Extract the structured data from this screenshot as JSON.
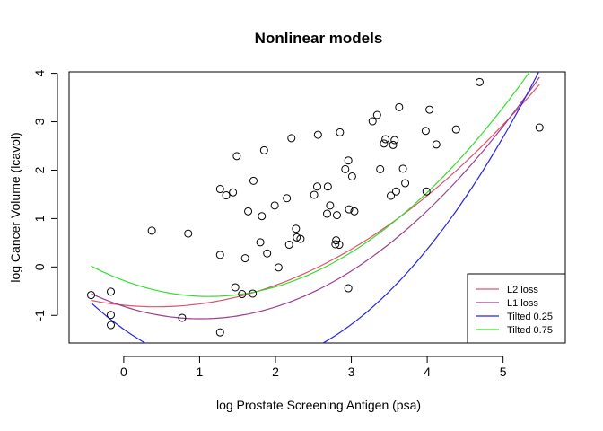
{
  "chart_data": {
    "type": "scatter",
    "title": "Nonlinear models",
    "xlabel": "log Prostate Screening Antigen (psa)",
    "ylabel": "log Cancer Volume (lcavol)",
    "xlim": [
      -0.72,
      5.82
    ],
    "ylim": [
      -1.57,
      4.03
    ],
    "xticks": [
      0,
      1,
      2,
      3,
      4,
      5
    ],
    "yticks": [
      -1,
      0,
      1,
      2,
      3,
      4
    ],
    "grid": false,
    "legend_position": "bottom-right",
    "points": [
      [
        -0.43,
        -0.58
      ],
      [
        -0.17,
        -0.51
      ],
      [
        -0.17,
        -0.99
      ],
      [
        -0.17,
        -1.2
      ],
      [
        0.37,
        0.75
      ],
      [
        0.77,
        -1.05
      ],
      [
        0.85,
        0.69
      ],
      [
        1.27,
        -1.35
      ],
      [
        1.27,
        0.25
      ],
      [
        1.27,
        1.61
      ],
      [
        1.35,
        1.48
      ],
      [
        1.44,
        1.54
      ],
      [
        1.47,
        -0.42
      ],
      [
        1.49,
        2.29
      ],
      [
        1.56,
        -0.56
      ],
      [
        1.6,
        0.18
      ],
      [
        1.64,
        1.15
      ],
      [
        1.7,
        -0.55
      ],
      [
        1.71,
        1.78
      ],
      [
        1.8,
        0.51
      ],
      [
        1.82,
        1.05
      ],
      [
        1.85,
        2.41
      ],
      [
        1.89,
        0.28
      ],
      [
        1.99,
        1.27
      ],
      [
        2.04,
        -0.01
      ],
      [
        2.15,
        1.42
      ],
      [
        2.18,
        0.46
      ],
      [
        2.21,
        2.66
      ],
      [
        2.27,
        0.79
      ],
      [
        2.28,
        0.61
      ],
      [
        2.33,
        0.58
      ],
      [
        2.51,
        1.49
      ],
      [
        2.55,
        1.66
      ],
      [
        2.56,
        2.73
      ],
      [
        2.68,
        1.1
      ],
      [
        2.69,
        1.66
      ],
      [
        2.72,
        1.27
      ],
      [
        2.79,
        0.47
      ],
      [
        2.8,
        0.55
      ],
      [
        2.81,
        1.07
      ],
      [
        2.84,
        0.46
      ],
      [
        2.85,
        2.78
      ],
      [
        2.92,
        2.02
      ],
      [
        2.96,
        2.2
      ],
      [
        2.96,
        -0.44
      ],
      [
        2.97,
        1.19
      ],
      [
        3.01,
        1.87
      ],
      [
        3.04,
        1.15
      ],
      [
        3.28,
        3.01
      ],
      [
        3.34,
        3.14
      ],
      [
        3.38,
        2.02
      ],
      [
        3.43,
        2.55
      ],
      [
        3.45,
        2.64
      ],
      [
        3.52,
        1.47
      ],
      [
        3.55,
        2.52
      ],
      [
        3.57,
        2.62
      ],
      [
        3.59,
        1.56
      ],
      [
        3.63,
        3.3
      ],
      [
        3.68,
        2.03
      ],
      [
        3.71,
        1.73
      ],
      [
        3.98,
        2.81
      ],
      [
        3.99,
        1.56
      ],
      [
        4.03,
        3.25
      ],
      [
        4.12,
        2.53
      ],
      [
        4.38,
        2.84
      ],
      [
        4.69,
        3.82
      ],
      [
        5.48,
        2.88
      ]
    ],
    "series": [
      {
        "name": "L2 loss",
        "color": "#DF536B",
        "x": [
          -0.43,
          5.48
        ],
        "y0": -0.69,
        "yb": 3.77,
        "curv": 0.18
      },
      {
        "name": "L1 loss",
        "color": "#9E3D8E",
        "x": [
          -0.43,
          5.48
        ],
        "y0": -0.55,
        "yb": 3.92,
        "curv": 0.25
      },
      {
        "name": "Tilted 0.25",
        "color": "#2424E8",
        "x": [
          -0.43,
          5.48
        ],
        "y0": -0.74,
        "yb": 4.06,
        "curv": 0.38
      },
      {
        "name": "Tilted 0.75",
        "color": "#33E02D",
        "x": [
          -0.43,
          5.48
        ],
        "y0": 0.02,
        "yb": 4.32,
        "curv": 0.26
      }
    ]
  }
}
